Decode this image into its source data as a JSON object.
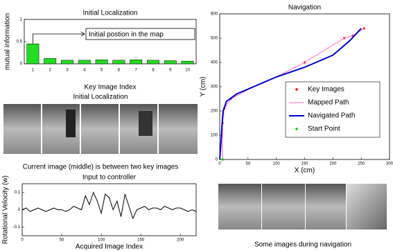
{
  "chart_data": [
    {
      "type": "bar",
      "title": "Initial Localization",
      "ylabel": "mutual information",
      "xlabel": "Key Image Index",
      "categories": [
        "1",
        "2",
        "3",
        "4",
        "5",
        "6",
        "7",
        "8",
        "9",
        "10"
      ],
      "values": [
        0.45,
        0.12,
        0.08,
        0.08,
        0.09,
        0.08,
        0.09,
        0.08,
        0.07,
        0.06
      ],
      "color": "#22dd22",
      "ylim": [
        0,
        1
      ],
      "yticks": [
        0,
        0.5,
        1
      ],
      "annotation": "Initial postion in the map"
    },
    {
      "type": "line",
      "title": "Input to controller",
      "ylabel": "Rotational Velocity (w)",
      "xlabel": "Acquired Image Index",
      "xlim": [
        0,
        220
      ],
      "xticks": [
        0,
        50,
        100,
        150,
        200
      ],
      "ylim": [
        -0.15,
        0.15
      ],
      "yticks": [
        -0.1,
        0,
        0.1
      ],
      "series": [
        {
          "color": "#000000",
          "mode": "line",
          "x": [
            0,
            5,
            10,
            15,
            20,
            25,
            30,
            35,
            40,
            45,
            50,
            55,
            60,
            65,
            70,
            75,
            80,
            85,
            90,
            95,
            100,
            105,
            110,
            115,
            120,
            125,
            130,
            135,
            140,
            145,
            150,
            155,
            160,
            165,
            170,
            175,
            180,
            185,
            190,
            195,
            200,
            205,
            210,
            215,
            220
          ],
          "values": [
            0,
            0.01,
            -0.01,
            0,
            0.01,
            0,
            -0.01,
            0,
            0.01,
            0,
            0,
            -0.01,
            0,
            0.02,
            0.01,
            0,
            0.08,
            0.03,
            0.1,
            0.05,
            -0.02,
            0.09,
            0.07,
            0,
            0.05,
            -0.04,
            0.09,
            0.02,
            -0.05,
            0,
            0.01,
            0.02,
            0,
            0.01,
            0.01,
            0,
            0.02,
            0.01,
            0,
            0.01,
            0.01,
            0,
            -0.01,
            0,
            -0.01
          ]
        }
      ]
    },
    {
      "type": "line",
      "title": "Navigation",
      "ylabel": "Y (cm)",
      "xlabel": "X (cm)",
      "xlim": [
        0,
        300
      ],
      "xticks": [
        0,
        50,
        100,
        150,
        200,
        250,
        300
      ],
      "ylim": [
        0,
        600
      ],
      "yticks": [
        0,
        100,
        200,
        300,
        400,
        500,
        600
      ],
      "legend": "right",
      "series": [
        {
          "name": "Key Images",
          "color": "#ff0000",
          "mode": "markers",
          "x": [
            5,
            5,
            8,
            20,
            150,
            220,
            235,
            255
          ],
          "values": [
            0,
            150,
            210,
            250,
            400,
            500,
            510,
            540
          ]
        },
        {
          "name": "Mapped Path",
          "color": "#ff66cc",
          "mode": "line",
          "x": [
            5,
            5,
            8,
            20,
            60,
            100,
            150,
            220,
            235,
            255
          ],
          "values": [
            0,
            150,
            210,
            250,
            300,
            340,
            400,
            500,
            510,
            540
          ]
        },
        {
          "name": "Navigated Path",
          "color": "#0000cc",
          "mode": "line",
          "x": [
            0,
            2,
            4,
            6,
            12,
            30,
            60,
            100,
            150,
            200,
            230,
            250
          ],
          "values": [
            0,
            60,
            140,
            200,
            240,
            270,
            300,
            340,
            380,
            430,
            490,
            540
          ]
        },
        {
          "name": "Start Point",
          "color": "#00cc00",
          "mode": "markers",
          "x": [
            5
          ],
          "values": [
            0
          ]
        }
      ]
    }
  ],
  "captions": {
    "strip_title": "Initial Localization",
    "strip_caption": "Current image (middle) is between two key images",
    "nav_caption": "Some images during navigation"
  }
}
